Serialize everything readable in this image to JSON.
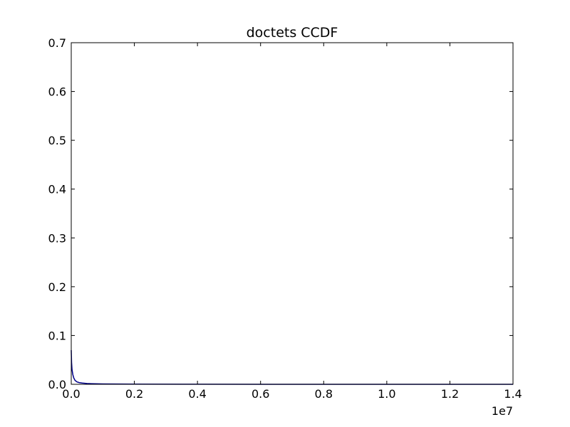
{
  "chart_data": {
    "type": "line",
    "title": "doctets CCDF",
    "xlabel": "",
    "ylabel": "",
    "xlim": [
      0,
      14000000
    ],
    "ylim": [
      0,
      0.7
    ],
    "x_offset_label": "1e7",
    "x_ticks": [
      0,
      2000000,
      4000000,
      6000000,
      8000000,
      10000000,
      12000000,
      14000000
    ],
    "x_tick_labels": [
      "0.0",
      "0.2",
      "0.4",
      "0.6",
      "0.8",
      "1.0",
      "1.2",
      "1.4"
    ],
    "y_ticks": [
      0,
      0.1,
      0.2,
      0.3,
      0.4,
      0.5,
      0.6,
      0.7
    ],
    "y_tick_labels": [
      "0.0",
      "0.1",
      "0.2",
      "0.3",
      "0.4",
      "0.5",
      "0.6",
      "0.7"
    ],
    "grid": false,
    "series": [
      {
        "color": "#00008b",
        "x": [
          0,
          10000,
          25000,
          50000,
          80000,
          120000,
          180000,
          250000,
          350000,
          500000,
          750000,
          1000000,
          2000000,
          4000000,
          8000000,
          14000000
        ],
        "y": [
          0.07,
          0.045,
          0.03,
          0.02,
          0.013,
          0.008,
          0.005,
          0.0035,
          0.0025,
          0.0016,
          0.001,
          0.0007,
          0.0003,
          0.00012,
          4e-05,
          0.0
        ]
      }
    ]
  }
}
